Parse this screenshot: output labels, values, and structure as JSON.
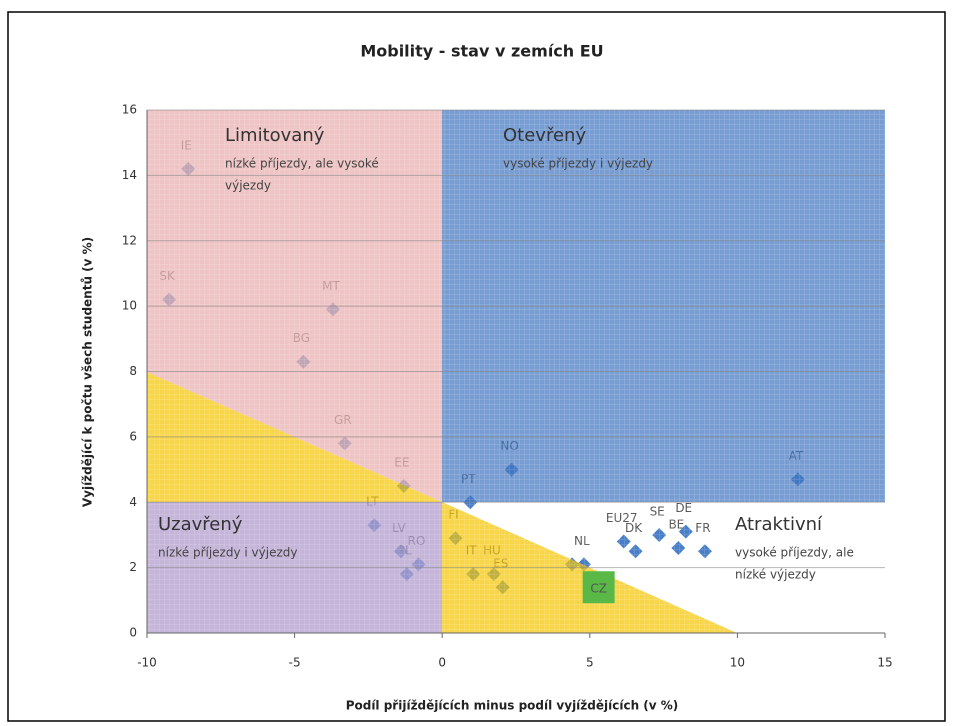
{
  "chart_data": {
    "type": "scatter",
    "title": "Mobility - stav v zemích EU",
    "x_label": "Podíl přijíždějících minus podíl vyjíždějících (v %)",
    "y_label": "Vyjíždějící k počtu všech studentů (v %)",
    "xlim": [
      -10,
      15
    ],
    "ylim": [
      0,
      16
    ],
    "xticks": [
      -10,
      -5,
      0,
      5,
      10,
      15
    ],
    "yticks": [
      0,
      2,
      4,
      6,
      8,
      10,
      12,
      14,
      16
    ],
    "grid": true,
    "color": "#4a7fc8",
    "points": [
      {
        "label": "IE",
        "x": -8.6,
        "y": 14.2
      },
      {
        "label": "SK",
        "x": -9.25,
        "y": 10.2
      },
      {
        "label": "MT",
        "x": -3.7,
        "y": 9.9
      },
      {
        "label": "BG",
        "x": -4.7,
        "y": 8.3
      },
      {
        "label": "GR",
        "x": -3.3,
        "y": 5.8
      },
      {
        "label": "EE",
        "x": -1.3,
        "y": 4.5
      },
      {
        "label": "LT",
        "x": -2.3,
        "y": 3.3
      },
      {
        "label": "LV",
        "x": -1.4,
        "y": 2.5
      },
      {
        "label": "PL",
        "x": -1.2,
        "y": 1.8
      },
      {
        "label": "RO",
        "x": -0.8,
        "y": 2.1
      },
      {
        "label": "FI",
        "x": 0.45,
        "y": 2.9
      },
      {
        "label": "IT",
        "x": 1.05,
        "y": 1.8
      },
      {
        "label": "HU",
        "x": 1.75,
        "y": 1.8
      },
      {
        "label": "ES",
        "x": 2.05,
        "y": 1.4
      },
      {
        "label": "PT",
        "x": 0.95,
        "y": 4.0
      },
      {
        "label": "NO",
        "x": 2.35,
        "y": 5.0
      },
      {
        "label": null,
        "x": 4.4,
        "y": 2.1
      },
      {
        "label": "NL",
        "x": 4.8,
        "y": 2.1
      },
      {
        "label": "CZ",
        "x": 5.3,
        "y": 1.4,
        "marker": "square",
        "color": "#5ab846"
      },
      {
        "label": "EU27",
        "x": 6.15,
        "y": 2.8
      },
      {
        "label": "DK",
        "x": 6.55,
        "y": 2.5
      },
      {
        "label": "SE",
        "x": 7.35,
        "y": 3.0
      },
      {
        "label": "BE",
        "x": 8.0,
        "y": 2.6
      },
      {
        "label": "DE",
        "x": 8.25,
        "y": 3.1
      },
      {
        "label": "FR",
        "x": 8.9,
        "y": 2.5
      },
      {
        "label": "AT",
        "x": 12.05,
        "y": 4.7
      }
    ],
    "quadrants": [
      {
        "name": "Limitovaný",
        "lines": [
          "nízké příjezdy, ale vysoké",
          "výjezdy"
        ]
      },
      {
        "name": "Otevřený",
        "lines": [
          "vysoké příjezdy i výjezdy"
        ]
      },
      {
        "name": "Uzavřený",
        "lines": [
          "nízké příjezdy i výjezdy"
        ]
      },
      {
        "name": "Atraktivní",
        "lines": [
          "vysoké příjezdy, ale",
          "nízké výjezdy"
        ]
      }
    ]
  }
}
